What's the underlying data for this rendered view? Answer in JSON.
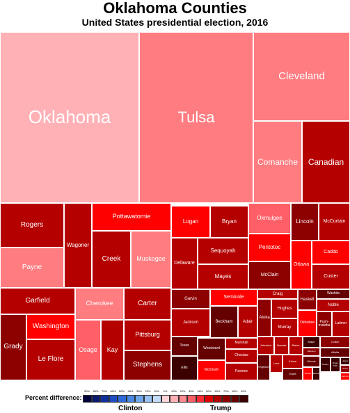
{
  "title": "Oklahoma Counties",
  "subtitle": "United States presidential election, 2016",
  "legend": {
    "label": "Percent difference:",
    "left_group": "Clinton",
    "right_group": "Trump",
    "ticks": [
      "90%",
      "80%",
      "70%",
      "60%",
      "50%",
      "40%",
      "30%",
      "20%",
      "10%",
      "0%",
      "10%",
      "20%",
      "30%",
      "40%",
      "50%",
      "60%",
      "70%",
      "80%",
      "90%"
    ],
    "colors": [
      "#00003a",
      "#0a1a6e",
      "#12309b",
      "#1f4ec2",
      "#2f6bd8",
      "#4a88e2",
      "#6ea6ea",
      "#98c2f1",
      "#c4dcf7",
      "#ffd4d8",
      "#ffb1b6",
      "#ff8a90",
      "#ff5f67",
      "#ff2b33",
      "#e00000",
      "#b50000",
      "#8d0000",
      "#650000",
      "#3d0000"
    ]
  },
  "chart_data": {
    "type": "treemap",
    "title": "Oklahoma Counties",
    "subtitle": "United States presidential election, 2016",
    "value_meaning": "relative area (approx. votes cast); color = Trump margin percent",
    "items": [
      {
        "name": "Oklahoma",
        "margin": 10,
        "color": "#ffb1b6"
      },
      {
        "name": "Tulsa",
        "margin": 25,
        "color": "#ff7c80"
      },
      {
        "name": "Cleveland",
        "margin": 22,
        "color": "#ff7c80"
      },
      {
        "name": "Comanche",
        "margin": 20,
        "color": "#ff7c80"
      },
      {
        "name": "Canadian",
        "margin": 50,
        "color": "#b50000"
      },
      {
        "name": "Rogers",
        "margin": 55,
        "color": "#b50000"
      },
      {
        "name": "Wagoner",
        "margin": 52,
        "color": "#b50000"
      },
      {
        "name": "Payne",
        "margin": 20,
        "color": "#ff7c80"
      },
      {
        "name": "Pottawatomie",
        "margin": 45,
        "color": "#ff0000"
      },
      {
        "name": "Creek",
        "margin": 55,
        "color": "#b50000"
      },
      {
        "name": "Muskogee",
        "margin": 25,
        "color": "#ff7c80"
      },
      {
        "name": "Garfield",
        "margin": 55,
        "color": "#b50000"
      },
      {
        "name": "Cherokee",
        "margin": 20,
        "color": "#ff7c80"
      },
      {
        "name": "Carter",
        "margin": 55,
        "color": "#b50000"
      },
      {
        "name": "Washington",
        "margin": 45,
        "color": "#ff0000"
      },
      {
        "name": "Pittsburg",
        "margin": 52,
        "color": "#b50000"
      },
      {
        "name": "Grady",
        "margin": 65,
        "color": "#8d0000"
      },
      {
        "name": "Le Flore",
        "margin": 55,
        "color": "#b50000"
      },
      {
        "name": "Osage",
        "margin": 32,
        "color": "#ff5f67"
      },
      {
        "name": "Kay",
        "margin": 53,
        "color": "#b50000"
      },
      {
        "name": "Stephens",
        "margin": 62,
        "color": "#8d0000"
      },
      {
        "name": "Logan",
        "margin": 45,
        "color": "#ff0000"
      },
      {
        "name": "Bryan",
        "margin": 52,
        "color": "#b50000"
      },
      {
        "name": "Okmulgee",
        "margin": 30,
        "color": "#ff5f67"
      },
      {
        "name": "Lincoln",
        "margin": 62,
        "color": "#8d0000"
      },
      {
        "name": "McCurtain",
        "margin": 55,
        "color": "#b50000"
      },
      {
        "name": "Delaware",
        "margin": 52,
        "color": "#b50000"
      },
      {
        "name": "Sequoyah",
        "margin": 52,
        "color": "#b50000"
      },
      {
        "name": "Pentotoc",
        "margin": 45,
        "color": "#ff0000"
      },
      {
        "name": "Caddo",
        "margin": 45,
        "color": "#ff0000"
      },
      {
        "name": "Mayes",
        "margin": 52,
        "color": "#b50000"
      },
      {
        "name": "McClain",
        "margin": 60,
        "color": "#8d0000"
      },
      {
        "name": "Ottawa",
        "margin": 45,
        "color": "#ff0000"
      },
      {
        "name": "Custer",
        "margin": 55,
        "color": "#b50000"
      },
      {
        "name": "Garvin",
        "margin": 58,
        "color": "#8d0000"
      },
      {
        "name": "Seminole",
        "margin": 45,
        "color": "#ff0000"
      },
      {
        "name": "Craig",
        "margin": 52,
        "color": "#b50000"
      },
      {
        "name": "Haskell",
        "margin": 60,
        "color": "#8d0000"
      },
      {
        "name": "Washita",
        "margin": 68,
        "color": "#650000"
      },
      {
        "name": "Hughes",
        "margin": 55,
        "color": "#b50000"
      },
      {
        "name": "Noble",
        "margin": 55,
        "color": "#b50000"
      },
      {
        "name": "Jackson",
        "margin": 55,
        "color": "#b50000"
      },
      {
        "name": "Beckham",
        "margin": 68,
        "color": "#650000"
      },
      {
        "name": "Adair",
        "margin": 55,
        "color": "#b50000"
      },
      {
        "name": "Atoka",
        "margin": 62,
        "color": "#8d0000"
      },
      {
        "name": "Murray",
        "margin": 55,
        "color": "#b50000"
      },
      {
        "name": "Okfuskee",
        "margin": 45,
        "color": "#ff0000"
      },
      {
        "name": "Push-mataha",
        "margin": 60,
        "color": "#8d0000"
      },
      {
        "name": "Latimer",
        "margin": 55,
        "color": "#b50000"
      },
      {
        "name": "Texas",
        "margin": 68,
        "color": "#650000"
      },
      {
        "name": "Woodward",
        "margin": 68,
        "color": "#650000"
      },
      {
        "name": "Marshall",
        "margin": 55,
        "color": "#b50000"
      },
      {
        "name": "Johnston",
        "margin": 58,
        "color": "#b50000"
      },
      {
        "name": "Nowata",
        "margin": 58,
        "color": "#b50000"
      },
      {
        "name": "Blaine",
        "margin": 60,
        "color": "#b50000"
      },
      {
        "name": "Major",
        "margin": 78,
        "color": "#3d0000"
      },
      {
        "name": "Choctaw",
        "margin": 55,
        "color": "#b50000"
      },
      {
        "name": "Jefferson",
        "margin": 58,
        "color": "#8d0000"
      },
      {
        "name": "Cotton",
        "margin": 60,
        "color": "#8d0000"
      },
      {
        "name": "Ellis",
        "margin": 80,
        "color": "#3d0000"
      },
      {
        "name": "McIntosh",
        "margin": 45,
        "color": "#ff0000"
      },
      {
        "name": "Pawnee",
        "margin": 55,
        "color": "#b50000"
      },
      {
        "name": "Kingfisher",
        "margin": 70,
        "color": "#650000"
      },
      {
        "name": "Love",
        "margin": 55,
        "color": "#b50000"
      },
      {
        "name": "Kiowa",
        "margin": 55,
        "color": "#b50000"
      },
      {
        "name": "Woods",
        "margin": 68,
        "color": "#650000"
      },
      {
        "name": "Alfalfa",
        "margin": 72,
        "color": "#650000"
      },
      {
        "name": "Grant",
        "margin": 68,
        "color": "#650000"
      },
      {
        "name": "Tillman",
        "margin": 45,
        "color": "#ff0000"
      },
      {
        "name": "Beaver",
        "margin": 80,
        "color": "#3d0000"
      },
      {
        "name": "Dewey",
        "margin": 78,
        "color": "#3d0000"
      },
      {
        "name": "Roger Mills",
        "margin": 80,
        "color": "#3d0000"
      },
      {
        "name": "Harper",
        "margin": 80,
        "color": "#3d0000"
      },
      {
        "name": "Greer",
        "margin": 60,
        "color": "#8d0000"
      },
      {
        "name": "Harmon",
        "margin": 40,
        "color": "#ff0000"
      },
      {
        "name": "Cimarron",
        "margin": 80,
        "color": "#3d0000"
      }
    ]
  }
}
